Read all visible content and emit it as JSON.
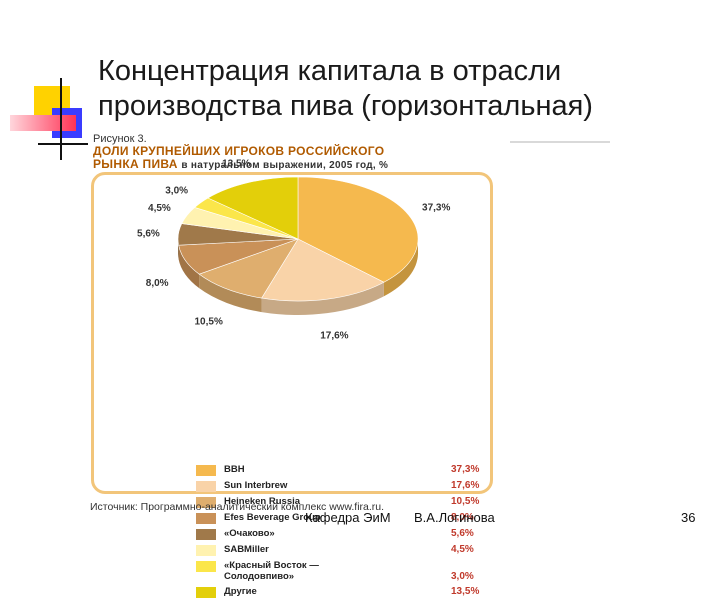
{
  "slide": {
    "title_line1": "Концентрация капитала в отрасли",
    "title_line2": "производства пива (горизонтальная)",
    "footer_dept": "Кафедра ЭиМ",
    "footer_author": "В.А.Логинова",
    "page_number": "36"
  },
  "figure": {
    "label": "Рисунок 3.",
    "heading_line1": "ДОЛИ КРУПНЕЙШИХ ИГРОКОВ РОССИЙСКОГО",
    "heading_line2": "РЫНКА ПИВА",
    "heading_sub": "в натуральном выражении, 2005 год, %",
    "source": "Источник: Программно-аналитический комплекс www.fira.ru."
  },
  "chart_data": {
    "type": "pie",
    "title": "ДОЛИ КРУПНЕЙШИХ ИГРОКОВ РОССИЙСКОГО РЫНКА ПИВА",
    "subtitle": "в натуральном выражении, 2005 год, %",
    "categories": [
      "BBH",
      "Sun Interbrew",
      "Heineken Russia",
      "Efes Beverage Group",
      "«Очаково»",
      "SABMiller",
      "«Красный Восток — Солодовпиво»",
      "Другие"
    ],
    "values": [
      37.3,
      17.6,
      10.5,
      8.0,
      5.6,
      4.5,
      3.0,
      13.5
    ],
    "value_labels": [
      "37,3%",
      "17,6%",
      "10,5%",
      "8,0%",
      "5,6%",
      "4,5%",
      "3,0%",
      "13,5%"
    ],
    "colors": [
      "#f5b94e",
      "#f9d3a8",
      "#dfae6e",
      "#c99158",
      "#a0794a",
      "#fff2b0",
      "#fbe64a",
      "#e3cf0a"
    ],
    "legend_names": [
      [
        "BBH"
      ],
      [
        "Sun Interbrew"
      ],
      [
        "Heineken Russia"
      ],
      [
        "Efes Beverage Group"
      ],
      [
        "«Очаково»"
      ],
      [
        "SABMiller"
      ],
      [
        "«Красный Восток —",
        "Солодовпиво»"
      ],
      [
        "Другие"
      ]
    ],
    "legend_placement": "bottom"
  }
}
